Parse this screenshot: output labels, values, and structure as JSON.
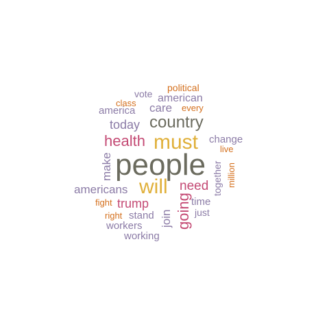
{
  "word_cloud": {
    "words": [
      {
        "text": "people",
        "color": "#6b6b5e"
      },
      {
        "text": "must",
        "color": "#e0b03a"
      },
      {
        "text": "will",
        "color": "#e0b03a"
      },
      {
        "text": "health",
        "color": "#c44a74"
      },
      {
        "text": "country",
        "color": "#6b6b5e"
      },
      {
        "text": "going",
        "color": "#c44a74"
      },
      {
        "text": "need",
        "color": "#c44a74"
      },
      {
        "text": "today",
        "color": "#8b7ba6"
      },
      {
        "text": "care",
        "color": "#8b7ba6"
      },
      {
        "text": "trump",
        "color": "#c44a74"
      },
      {
        "text": "americans",
        "color": "#8b7ba6"
      },
      {
        "text": "american",
        "color": "#8b7ba6"
      },
      {
        "text": "america",
        "color": "#8b7ba6"
      },
      {
        "text": "make",
        "color": "#8b7ba6"
      },
      {
        "text": "join",
        "color": "#8b7ba6"
      },
      {
        "text": "change",
        "color": "#8b7ba6"
      },
      {
        "text": "together",
        "color": "#8b7ba6"
      },
      {
        "text": "time",
        "color": "#8b7ba6"
      },
      {
        "text": "stand",
        "color": "#8b7ba6"
      },
      {
        "text": "workers",
        "color": "#8b7ba6"
      },
      {
        "text": "working",
        "color": "#8b7ba6"
      },
      {
        "text": "vote",
        "color": "#8b7ba6"
      },
      {
        "text": "just",
        "color": "#8b7ba6"
      },
      {
        "text": "political",
        "color": "#d4701e"
      },
      {
        "text": "every",
        "color": "#d4701e"
      },
      {
        "text": "class",
        "color": "#d4701e"
      },
      {
        "text": "live",
        "color": "#d4701e"
      },
      {
        "text": "million",
        "color": "#d4701e"
      },
      {
        "text": "fight",
        "color": "#d4701e"
      },
      {
        "text": "right",
        "color": "#d4701e"
      }
    ]
  }
}
